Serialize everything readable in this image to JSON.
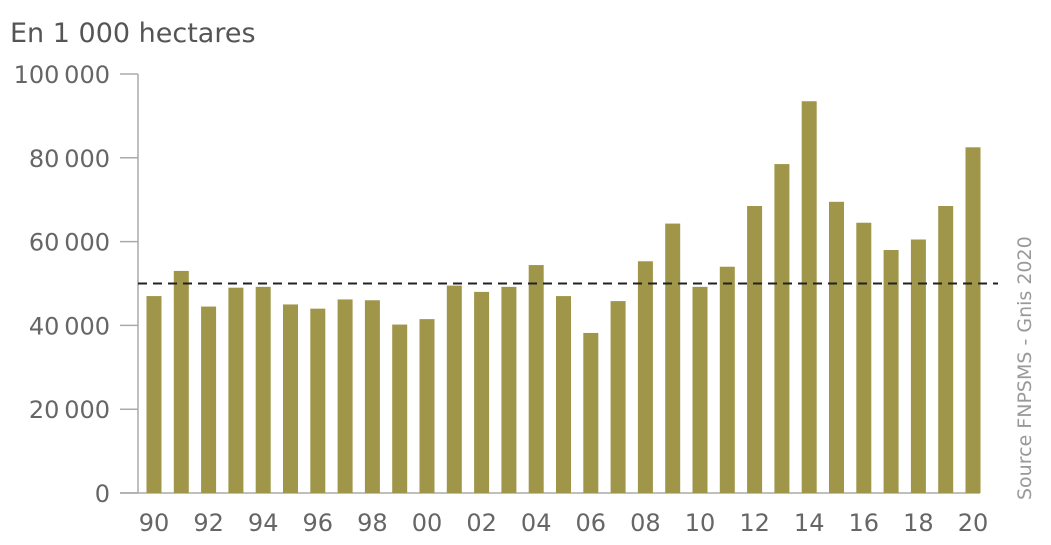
{
  "chart_data": {
    "type": "bar",
    "title": "",
    "unit_label": "En 1 000 hectares",
    "source": "Source FNPSMS - Gnis 2020",
    "xlabel": "",
    "ylabel": "",
    "categories": [
      "1990",
      "1991",
      "1992",
      "1993",
      "1994",
      "1995",
      "1996",
      "1997",
      "1998",
      "1999",
      "2000",
      "2001",
      "2002",
      "2003",
      "2004",
      "2005",
      "2006",
      "2007",
      "2008",
      "2009",
      "2010",
      "2011",
      "2012",
      "2013",
      "2014",
      "2015",
      "2016",
      "2017",
      "2018",
      "2019",
      "2020"
    ],
    "x_tick_labels": [
      "90",
      "",
      "92",
      "",
      "94",
      "",
      "96",
      "",
      "98",
      "",
      "00",
      "",
      "02",
      "",
      "04",
      "",
      "06",
      "",
      "08",
      "",
      "10",
      "",
      "12",
      "",
      "14",
      "",
      "16",
      "",
      "18",
      "",
      "20"
    ],
    "values": [
      47000,
      53000,
      44500,
      49000,
      49200,
      45000,
      44000,
      46200,
      46000,
      40200,
      41500,
      49500,
      48000,
      49200,
      54400,
      47000,
      38200,
      45800,
      55300,
      64300,
      49200,
      54000,
      68500,
      78500,
      93500,
      69500,
      64500,
      58000,
      60500,
      68500,
      82500
    ],
    "ylim": [
      0,
      100000
    ],
    "y_ticks": [
      0,
      20000,
      40000,
      60000,
      80000,
      100000
    ],
    "y_tick_labels": [
      "0",
      "20 000",
      "40 000",
      "60 000",
      "80 000",
      "100 000"
    ],
    "reference_line": {
      "value": 50000,
      "style": "dashed"
    },
    "grid": false,
    "legend": "none",
    "colors": {
      "bar": "#a0964a",
      "axis": "#aaaaaa",
      "reference_line": "#222222",
      "text": "#555555"
    }
  }
}
